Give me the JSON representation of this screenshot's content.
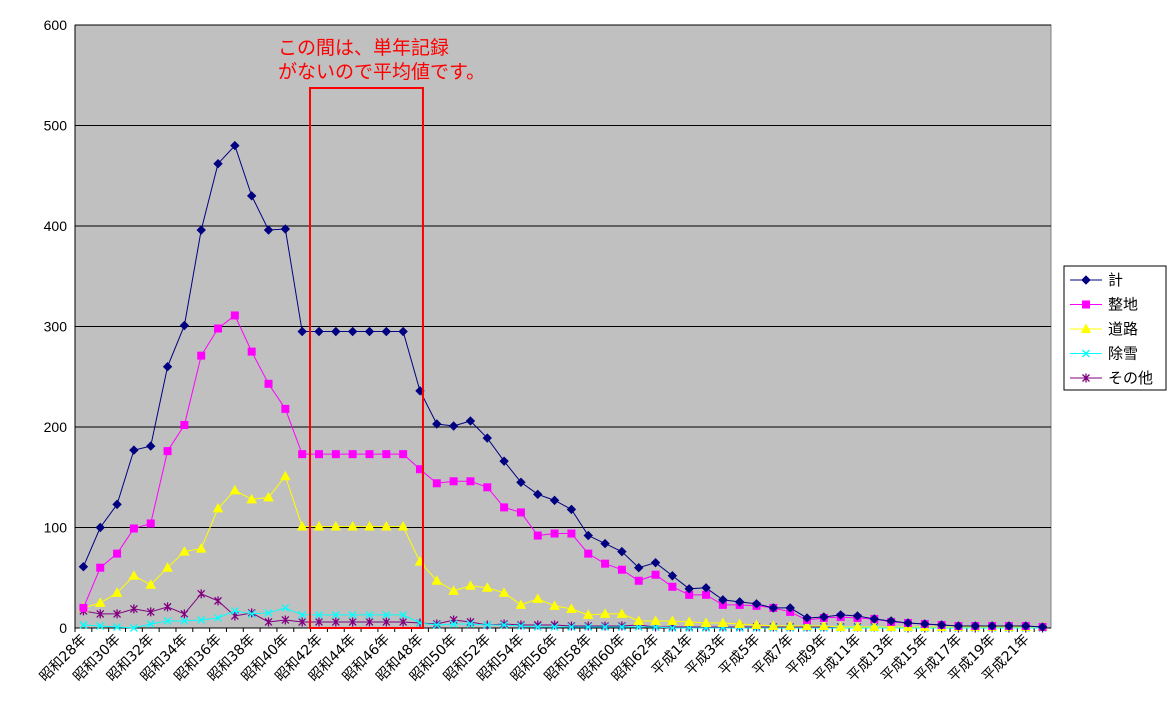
{
  "chart_data": {
    "type": "line",
    "title": "",
    "xlabel": "",
    "ylabel": "",
    "ylim": [
      0,
      600
    ],
    "yticks": [
      0,
      100,
      200,
      300,
      400,
      500,
      600
    ],
    "grid": true,
    "legend_position": "right",
    "background_color": "#c0c0c0",
    "categories": [
      "昭和28年",
      "昭和29年",
      "昭和30年",
      "昭和31年",
      "昭和32年",
      "昭和33年",
      "昭和34年",
      "昭和35年",
      "昭和36年",
      "昭和37年",
      "昭和38年",
      "昭和39年",
      "昭和40年",
      "昭和41年",
      "昭和42年",
      "昭和43年",
      "昭和44年",
      "昭和45年",
      "昭和46年",
      "昭和47年",
      "昭和48年",
      "昭和49年",
      "昭和50年",
      "昭和51年",
      "昭和52年",
      "昭和53年",
      "昭和54年",
      "昭和55年",
      "昭和56年",
      "昭和57年",
      "昭和58年",
      "昭和59年",
      "昭和60年",
      "昭和61年",
      "昭和62年",
      "昭和63年",
      "平成1年",
      "平成2年",
      "平成3年",
      "平成4年",
      "平成5年",
      "平成6年",
      "平成7年",
      "平成8年",
      "平成9年",
      "平成10年",
      "平成11年",
      "平成12年",
      "平成13年",
      "平成14年",
      "平成15年",
      "平成16年",
      "平成17年",
      "平成18年",
      "平成19年",
      "平成20年",
      "平成21年",
      "平成22年"
    ],
    "x_tick_labels": [
      "昭和28年",
      "",
      "昭和30年",
      "",
      "昭和32年",
      "",
      "昭和34年",
      "",
      "昭和36年",
      "",
      "昭和38年",
      "",
      "昭和40年",
      "",
      "昭和42年",
      "",
      "昭和44年",
      "",
      "昭和46年",
      "",
      "昭和48年",
      "",
      "昭和50年",
      "",
      "昭和52年",
      "",
      "昭和54年",
      "",
      "昭和56年",
      "",
      "昭和58年",
      "",
      "昭和60年",
      "",
      "昭和62年",
      "",
      "平成1年",
      "",
      "平成3年",
      "",
      "平成5年",
      "",
      "平成7年",
      "",
      "平成9年",
      "",
      "平成11年",
      "",
      "平成13年",
      "",
      "平成15年",
      "",
      "平成17年",
      "",
      "平成19年",
      "",
      "平成21年",
      ""
    ],
    "series": [
      {
        "name": "計",
        "color": "#000080",
        "marker": "diamond",
        "values": [
          61,
          100,
          123,
          177,
          181,
          260,
          301,
          396,
          462,
          480,
          430,
          396,
          397,
          295,
          295,
          295,
          295,
          295,
          295,
          295,
          236,
          203,
          201,
          206,
          189,
          166,
          145,
          133,
          127,
          118,
          92,
          84,
          76,
          60,
          65,
          52,
          39,
          40,
          28,
          26,
          24,
          20,
          20,
          10,
          11,
          13,
          12,
          9,
          7,
          5,
          4,
          3,
          2,
          2,
          2,
          2,
          2,
          1
        ]
      },
      {
        "name": "整地",
        "color": "#ff00ff",
        "marker": "square",
        "values": [
          20,
          60,
          74,
          99,
          104,
          176,
          202,
          271,
          298,
          311,
          275,
          243,
          218,
          173,
          173,
          173,
          173,
          173,
          173,
          173,
          158,
          144,
          146,
          146,
          140,
          120,
          115,
          92,
          94,
          94,
          74,
          64,
          58,
          47,
          53,
          41,
          33,
          33,
          23,
          23,
          22,
          20,
          16,
          8,
          10,
          11,
          10,
          9,
          6,
          5,
          4,
          3,
          2,
          2,
          2,
          2,
          2,
          1
        ]
      },
      {
        "name": "道路",
        "color": "#ffff00",
        "marker": "triangle",
        "values": [
          20,
          25,
          35,
          52,
          43,
          60,
          76,
          79,
          119,
          137,
          128,
          130,
          151,
          101,
          101,
          101,
          101,
          101,
          101,
          101,
          66,
          47,
          37,
          42,
          40,
          35,
          23,
          29,
          22,
          19,
          13,
          14,
          14,
          7,
          7,
          7,
          6,
          5,
          5,
          4,
          3,
          2,
          2,
          2,
          2,
          1,
          1,
          1,
          1,
          1,
          1,
          1,
          1,
          1,
          1,
          1,
          1,
          1
        ]
      },
      {
        "name": "除雪",
        "color": "#00ffff",
        "marker": "x",
        "values": [
          3,
          2,
          1,
          0,
          4,
          7,
          7,
          8,
          10,
          17,
          14,
          15,
          20,
          13,
          13,
          13,
          13,
          13,
          13,
          13,
          5,
          3,
          4,
          4,
          3,
          3,
          2,
          1,
          1,
          1,
          1,
          1,
          1,
          1,
          1,
          0,
          0,
          0,
          0,
          0,
          0,
          0,
          0,
          0,
          0,
          0,
          0,
          0,
          0,
          0,
          0,
          0,
          0,
          0,
          0,
          0,
          0,
          0
        ]
      },
      {
        "name": "その他",
        "color": "#800080",
        "marker": "star",
        "values": [
          17,
          14,
          14,
          19,
          16,
          21,
          14,
          34,
          27,
          12,
          15,
          6,
          8,
          6,
          6,
          6,
          6,
          6,
          6,
          6,
          5,
          4,
          8,
          6,
          3,
          4,
          3,
          3,
          3,
          2,
          2,
          2,
          2,
          3,
          1,
          1,
          1,
          1,
          1,
          1,
          1,
          1,
          1,
          1,
          1,
          1,
          1,
          1,
          1,
          0,
          0,
          0,
          0,
          0,
          0,
          0,
          0,
          0
        ]
      }
    ],
    "highlight_range": [
      "昭和42年",
      "昭和48年"
    ],
    "annotation": {
      "line1": "この間は、単年記録",
      "line2": "がないので平均値です。",
      "color": "#ff0000"
    }
  }
}
